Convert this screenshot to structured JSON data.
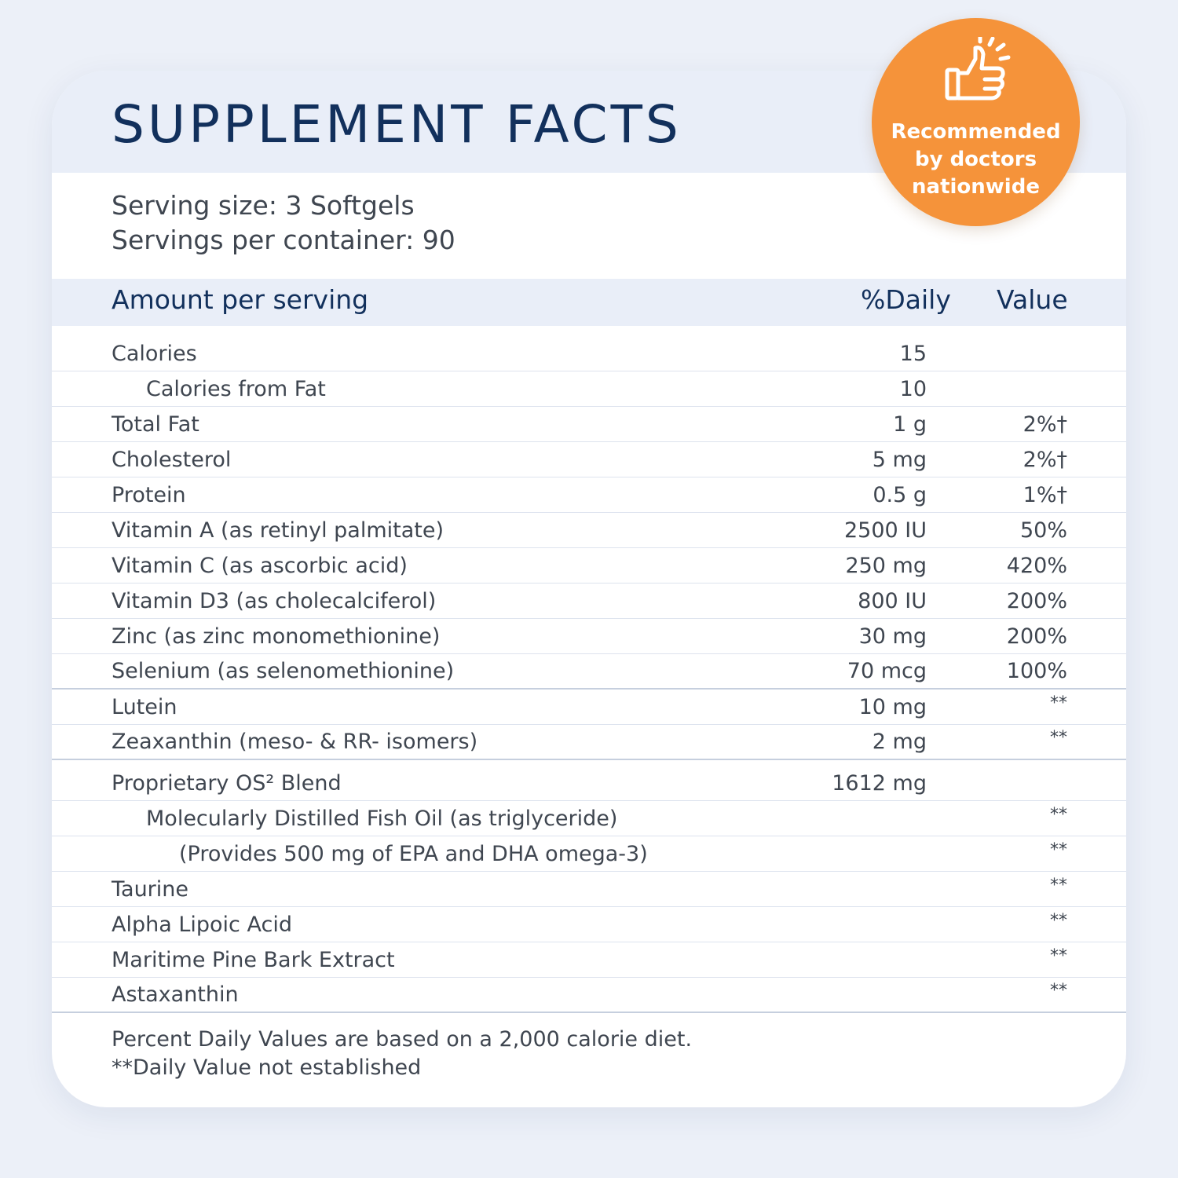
{
  "title": "SUPPLEMENT FACTS",
  "serving": {
    "size": "Serving size: 3 Softgels",
    "per_container": "Servings per container: 90"
  },
  "table_header": {
    "amount": "Amount per serving",
    "daily": "%Daily",
    "value": "Value"
  },
  "rows": [
    {
      "name": "Calories",
      "amount": "15",
      "dv": ""
    },
    {
      "name": "Calories from Fat",
      "amount": "10",
      "dv": ""
    },
    {
      "name": "Total Fat",
      "amount": "1 g",
      "dv": "2%†"
    },
    {
      "name": "Cholesterol",
      "amount": "5 mg",
      "dv": "2%†"
    },
    {
      "name": "Protein",
      "amount": "0.5 g",
      "dv": "1%†"
    },
    {
      "name": "Vitamin A (as retinyl palmitate)",
      "amount": "2500 IU",
      "dv": "50%"
    },
    {
      "name": "Vitamin C (as ascorbic acid)",
      "amount": "250 mg",
      "dv": "420%"
    },
    {
      "name": "Vitamin D3 (as cholecalciferol)",
      "amount": "800 IU",
      "dv": "200%"
    },
    {
      "name": "Zinc (as zinc monomethionine)",
      "amount": "30 mg",
      "dv": "200%"
    },
    {
      "name": "Selenium (as selenomethionine)",
      "amount": "70 mcg",
      "dv": "100%"
    },
    {
      "name": "Lutein",
      "amount": "10 mg",
      "dv": "**"
    },
    {
      "name": "Zeaxanthin (meso- & RR- isomers)",
      "amount": "2 mg",
      "dv": "**"
    },
    {
      "name": "Proprietary OS² Blend",
      "amount": "1612 mg",
      "dv": ""
    },
    {
      "name": "Molecularly Distilled Fish Oil (as triglyceride)",
      "amount": "",
      "dv": "**"
    },
    {
      "name": "(Provides 500 mg of EPA and DHA omega-3)",
      "amount": "",
      "dv": "**"
    },
    {
      "name": "Taurine",
      "amount": "",
      "dv": "**"
    },
    {
      "name": "Alpha Lipoic Acid",
      "amount": "",
      "dv": "**"
    },
    {
      "name": "Maritime Pine Bark Extract",
      "amount": "",
      "dv": "**"
    },
    {
      "name": "Astaxanthin",
      "amount": "",
      "dv": "**"
    }
  ],
  "footer": {
    "line1": "Percent Daily Values are based on a 2,000 calorie diet.",
    "line2": "**Daily Value not established"
  },
  "badge": {
    "icon": "thumbs-up-icon",
    "line1": "Recommended",
    "line2": "by doctors",
    "line3": "nationwide",
    "color": "#f5933a"
  },
  "colors": {
    "title": "#12305c",
    "text": "#3f4650",
    "band": "#e9eef8",
    "background": "#ecf0f8"
  }
}
